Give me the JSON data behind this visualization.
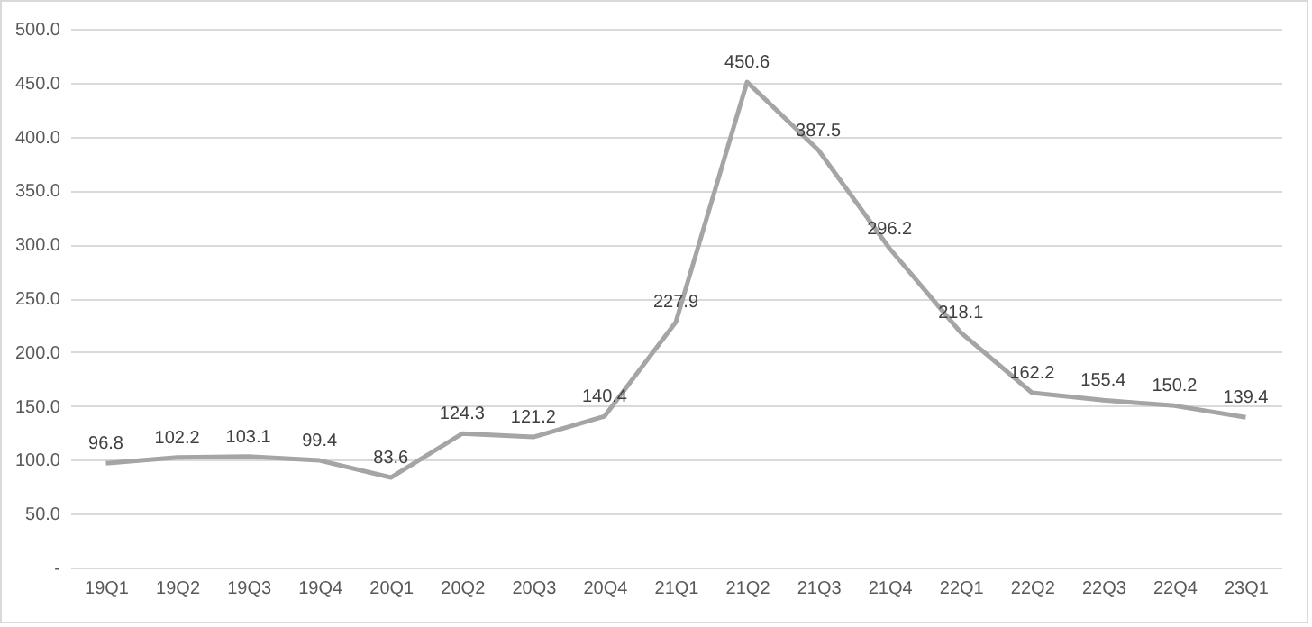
{
  "chart_data": {
    "type": "line",
    "categories": [
      "19Q1",
      "19Q2",
      "19Q3",
      "19Q4",
      "20Q1",
      "20Q2",
      "20Q3",
      "20Q4",
      "21Q1",
      "21Q2",
      "21Q3",
      "21Q4",
      "22Q1",
      "22Q2",
      "22Q3",
      "22Q4",
      "23Q1"
    ],
    "series": [
      {
        "color": "#a5a5a5",
        "values": [
          96.8,
          102.2,
          103.1,
          99.4,
          83.6,
          124.3,
          121.2,
          140.4,
          227.9,
          450.6,
          387.5,
          296.2,
          218.1,
          162.2,
          155.4,
          150.2,
          139.4
        ]
      }
    ],
    "ylim": [
      0,
      500
    ],
    "yticks": [
      {
        "value": 0,
        "label": "-"
      },
      {
        "value": 50,
        "label": "50.0"
      },
      {
        "value": 100,
        "label": "100.0"
      },
      {
        "value": 150,
        "label": "150.0"
      },
      {
        "value": 200,
        "label": "200.0"
      },
      {
        "value": 250,
        "label": "250.0"
      },
      {
        "value": 300,
        "label": "300.0"
      },
      {
        "value": 350,
        "label": "350.0"
      },
      {
        "value": 400,
        "label": "400.0"
      },
      {
        "value": 450,
        "label": "450.0"
      },
      {
        "value": 500,
        "label": "500.0"
      }
    ],
    "grid": "y",
    "data_labels": true,
    "marker": "none",
    "line_style": "solid",
    "legend": false
  }
}
